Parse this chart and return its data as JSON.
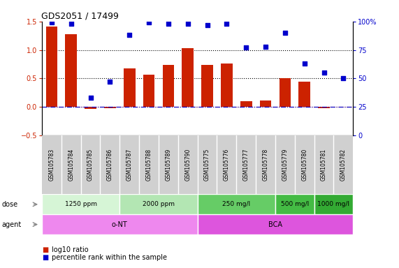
{
  "title": "GDS2051 / 17499",
  "samples": [
    "GSM105783",
    "GSM105784",
    "GSM105785",
    "GSM105786",
    "GSM105787",
    "GSM105788",
    "GSM105789",
    "GSM105790",
    "GSM105775",
    "GSM105776",
    "GSM105777",
    "GSM105778",
    "GSM105779",
    "GSM105780",
    "GSM105781",
    "GSM105782"
  ],
  "log10_ratio": [
    1.41,
    1.28,
    -0.04,
    -0.02,
    0.68,
    0.57,
    0.74,
    1.03,
    0.74,
    0.76,
    0.1,
    0.11,
    0.5,
    0.44,
    -0.02,
    0.0
  ],
  "percentile_rank": [
    99,
    98,
    33,
    47,
    88,
    99,
    98,
    98,
    97,
    98,
    77,
    78,
    90,
    63,
    55,
    50
  ],
  "dose_groups": [
    {
      "label": "1250 ppm",
      "start": 0,
      "end": 4,
      "color": "#d6f5d6"
    },
    {
      "label": "2000 ppm",
      "start": 4,
      "end": 8,
      "color": "#b3e6b3"
    },
    {
      "label": "250 mg/l",
      "start": 8,
      "end": 12,
      "color": "#66cc66"
    },
    {
      "label": "500 mg/l",
      "start": 12,
      "end": 14,
      "color": "#44bb44"
    },
    {
      "label": "1000 mg/l",
      "start": 14,
      "end": 16,
      "color": "#33aa33"
    }
  ],
  "agent_groups": [
    {
      "label": "o-NT",
      "start": 0,
      "end": 8,
      "color": "#ee88ee"
    },
    {
      "label": "BCA",
      "start": 8,
      "end": 16,
      "color": "#dd55dd"
    }
  ],
  "bar_color": "#cc2200",
  "dot_color": "#0000cc",
  "left_ylim": [
    -0.5,
    1.5
  ],
  "right_ylim": [
    0,
    100
  ],
  "left_yticks": [
    -0.5,
    0.0,
    0.5,
    1.0,
    1.5
  ],
  "right_yticks": [
    0,
    25,
    50,
    75,
    100
  ],
  "hline_y": [
    0.5,
    1.0
  ],
  "legend_items": [
    {
      "label": "log10 ratio",
      "color": "#cc2200"
    },
    {
      "label": "percentile rank within the sample",
      "color": "#0000cc"
    }
  ],
  "xtick_bg": "#dddddd",
  "fig_width": 5.71,
  "fig_height": 3.84,
  "dpi": 100
}
